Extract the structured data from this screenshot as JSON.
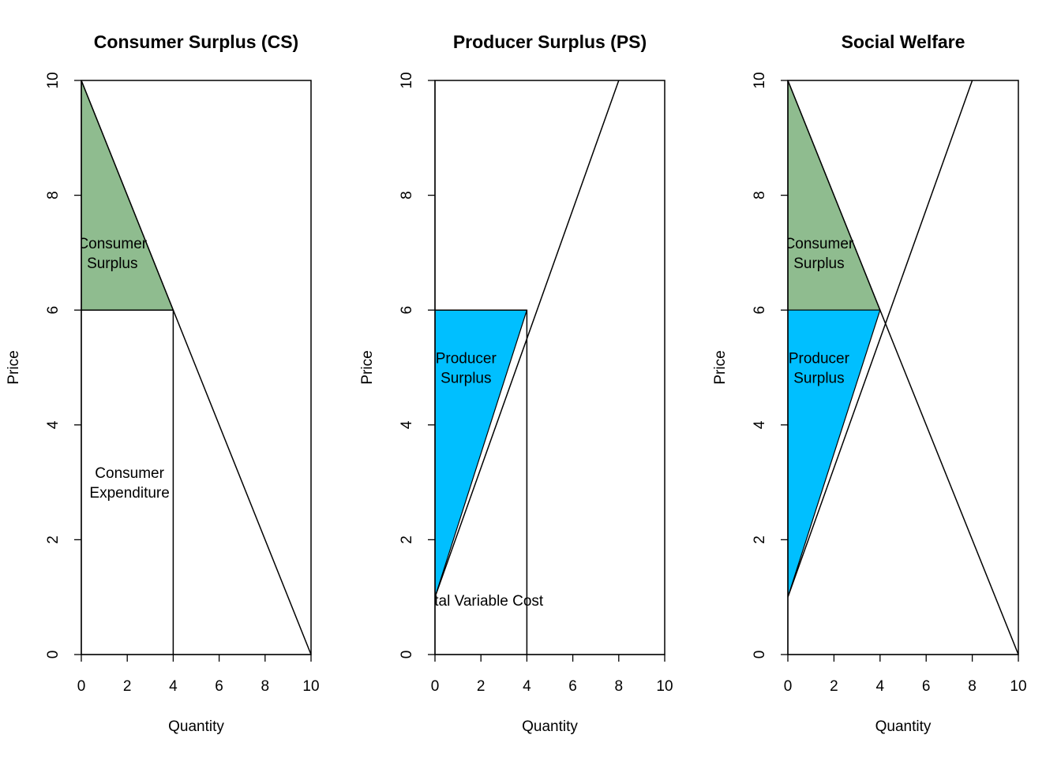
{
  "chart_data": [
    {
      "type": "area",
      "title": "Consumer Surplus (CS)",
      "xlabel": "Quantity",
      "ylabel": "Price",
      "xlim": [
        0,
        10
      ],
      "ylim": [
        0,
        10
      ],
      "xticks": [
        0,
        2,
        4,
        6,
        8,
        10
      ],
      "yticks": [
        0,
        2,
        4,
        6,
        8,
        10
      ],
      "lines": [
        {
          "name": "demand",
          "points": [
            [
              0,
              10
            ],
            [
              10,
              0
            ]
          ]
        },
        {
          "name": "price-line",
          "points": [
            [
              0,
              6
            ],
            [
              4,
              6
            ]
          ]
        },
        {
          "name": "quantity-line",
          "points": [
            [
              4,
              0
            ],
            [
              4,
              6
            ]
          ]
        }
      ],
      "regions": [
        {
          "name": "consumer-surplus",
          "color": "#8FBC8F",
          "points": [
            [
              0,
              10
            ],
            [
              4,
              6
            ],
            [
              0,
              6
            ]
          ]
        }
      ],
      "annotations": [
        {
          "text": [
            "Consumer",
            "Surplus"
          ],
          "x": 1.35,
          "y": 7.0
        },
        {
          "text": [
            "Consumer",
            "Expenditure"
          ],
          "x": 2.1,
          "y": 3.0
        }
      ]
    },
    {
      "type": "area",
      "title": "Producer Surplus (PS)",
      "xlabel": "Quantity",
      "ylabel": "Price",
      "xlim": [
        0,
        10
      ],
      "ylim": [
        0,
        10
      ],
      "xticks": [
        0,
        2,
        4,
        6,
        8,
        10
      ],
      "yticks": [
        0,
        2,
        4,
        6,
        8,
        10
      ],
      "lines": [
        {
          "name": "supply",
          "points": [
            [
              0,
              1
            ],
            [
              8,
              10
            ]
          ]
        },
        {
          "name": "price-line",
          "points": [
            [
              0,
              6
            ],
            [
              4,
              6
            ]
          ]
        },
        {
          "name": "quantity-line",
          "points": [
            [
              4,
              0
            ],
            [
              4,
              6
            ]
          ]
        }
      ],
      "regions": [
        {
          "name": "producer-surplus",
          "color": "#00BFFF",
          "points": [
            [
              0,
              6
            ],
            [
              4,
              6
            ],
            [
              0,
              1
            ]
          ]
        }
      ],
      "annotations": [
        {
          "text": [
            "Producer",
            "Surplus"
          ],
          "x": 1.35,
          "y": 5.0
        },
        {
          "text": [
            "Total Variable Cost"
          ],
          "x": 2.0,
          "y": 0.95
        }
      ]
    },
    {
      "type": "area",
      "title": "Social Welfare",
      "xlabel": "Quantity",
      "ylabel": "Price",
      "xlim": [
        0,
        10
      ],
      "ylim": [
        0,
        10
      ],
      "xticks": [
        0,
        2,
        4,
        6,
        8,
        10
      ],
      "yticks": [
        0,
        2,
        4,
        6,
        8,
        10
      ],
      "lines": [
        {
          "name": "demand",
          "points": [
            [
              0,
              10
            ],
            [
              10,
              0
            ]
          ]
        },
        {
          "name": "supply",
          "points": [
            [
              0,
              1
            ],
            [
              8,
              10
            ]
          ]
        }
      ],
      "regions": [
        {
          "name": "consumer-surplus",
          "color": "#8FBC8F",
          "points": [
            [
              0,
              10
            ],
            [
              4,
              6
            ],
            [
              0,
              6
            ]
          ]
        },
        {
          "name": "producer-surplus",
          "color": "#00BFFF",
          "points": [
            [
              0,
              6
            ],
            [
              4,
              6
            ],
            [
              0,
              1
            ]
          ]
        }
      ],
      "annotations": [
        {
          "text": [
            "Consumer",
            "Surplus"
          ],
          "x": 1.35,
          "y": 7.0
        },
        {
          "text": [
            "Producer",
            "Surplus"
          ],
          "x": 1.35,
          "y": 5.0
        }
      ]
    }
  ]
}
